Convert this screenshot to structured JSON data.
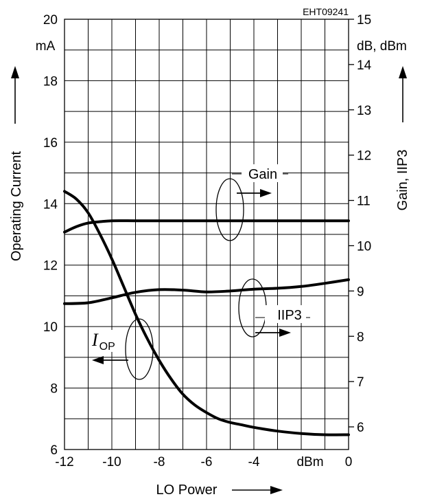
{
  "chart_data": {
    "type": "line",
    "reference": "EHT09241",
    "x_axis": {
      "label": "LO Power",
      "unit": "dBm",
      "range": [
        -12,
        0
      ],
      "ticks": [
        {
          "value": -12,
          "label": "-12"
        },
        {
          "value": -10,
          "label": "-10"
        },
        {
          "value": -8,
          "label": "-8"
        },
        {
          "value": -6,
          "label": "-6"
        },
        {
          "value": -4,
          "label": "-4"
        },
        {
          "value": 0,
          "label": "0"
        }
      ]
    },
    "y_left": {
      "label": "Operating Current",
      "unit": "mA",
      "range": [
        6,
        20
      ],
      "ticks": [
        {
          "value": 6,
          "label": "6"
        },
        {
          "value": 8,
          "label": "8"
        },
        {
          "value": 10,
          "label": "10"
        },
        {
          "value": 12,
          "label": "12"
        },
        {
          "value": 14,
          "label": "14"
        },
        {
          "value": 16,
          "label": "16"
        },
        {
          "value": 18,
          "label": "18"
        },
        {
          "value": 20,
          "label": "20"
        }
      ]
    },
    "y_right": {
      "label": "Gain, IIP3",
      "unit": "dB, dBm",
      "range": [
        5.5,
        15
      ],
      "ticks": [
        {
          "value": 6,
          "label": "6"
        },
        {
          "value": 7,
          "label": "7"
        },
        {
          "value": 8,
          "label": "8"
        },
        {
          "value": 9,
          "label": "9"
        },
        {
          "value": 10,
          "label": "10"
        },
        {
          "value": 11,
          "label": "11"
        },
        {
          "value": 12,
          "label": "12"
        },
        {
          "value": 13,
          "label": "13"
        },
        {
          "value": 14,
          "label": "14"
        },
        {
          "value": 15,
          "label": "15"
        }
      ]
    },
    "grid": true,
    "series": [
      {
        "name": "Gain",
        "axis": "right",
        "x": [
          -12,
          -11.5,
          -11,
          -10.5,
          -10,
          -9,
          -8,
          -6,
          -4,
          -2,
          0
        ],
        "y": [
          10.3,
          10.42,
          10.5,
          10.53,
          10.55,
          10.55,
          10.55,
          10.55,
          10.55,
          10.55,
          10.55
        ]
      },
      {
        "name": "IIP3",
        "axis": "right",
        "x": [
          -12,
          -11,
          -10,
          -9,
          -8,
          -7,
          -6,
          -5,
          -4,
          -3,
          -2,
          -1,
          0
        ],
        "y": [
          8.72,
          8.74,
          8.85,
          8.97,
          9.03,
          9.02,
          8.98,
          9.0,
          9.04,
          9.06,
          9.1,
          9.17,
          9.25
        ]
      },
      {
        "name": "I_OP",
        "axis": "left",
        "x": [
          -12,
          -11.5,
          -11,
          -10.5,
          -10,
          -9.5,
          -9,
          -8.5,
          -8,
          -7.5,
          -7,
          -6.5,
          -6,
          -5.5,
          -5,
          -4.5,
          -4,
          -3,
          -2,
          -1,
          0
        ],
        "y": [
          14.4,
          14.15,
          13.7,
          13.0,
          12.2,
          11.3,
          10.4,
          9.6,
          8.9,
          8.3,
          7.8,
          7.45,
          7.2,
          7.0,
          6.88,
          6.8,
          6.72,
          6.6,
          6.52,
          6.48,
          6.48
        ]
      }
    ],
    "annotations": {
      "gain": "Gain",
      "iip3": "IIP3",
      "iop_symbol": "I",
      "iop_subscript": "OP"
    }
  }
}
